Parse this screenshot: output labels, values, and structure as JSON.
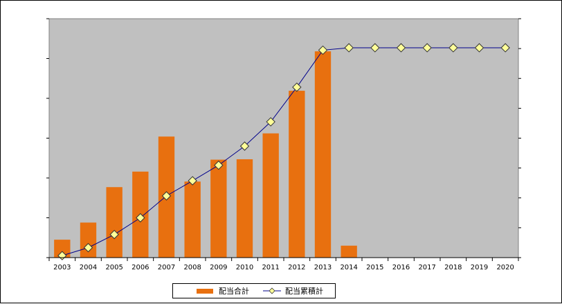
{
  "chart_data": {
    "type": "bar",
    "categories": [
      "2003",
      "2004",
      "2005",
      "2006",
      "2007",
      "2008",
      "2009",
      "2010",
      "2011",
      "2012",
      "2013",
      "2014",
      "2015",
      "2016",
      "2017",
      "2018",
      "2019",
      "2020"
    ],
    "series": [
      {
        "name": "配当合計",
        "type": "bar",
        "color": "#E8700F",
        "values": [
          4.5,
          8.8,
          17.7,
          21.6,
          30.4,
          19.1,
          24.6,
          24.7,
          31.2,
          41.9,
          51.8,
          3.0,
          null,
          null,
          null,
          null,
          null,
          null
        ]
      },
      {
        "name": "配当累積計",
        "type": "line",
        "color": "#00008B",
        "marker_color": "#FFFF99",
        "values": [
          0.5,
          2.5,
          5.8,
          10.0,
          15.5,
          19.3,
          23.2,
          28.0,
          34.1,
          42.8,
          52.1,
          52.7,
          52.7,
          52.7,
          52.7,
          52.7,
          52.7,
          52.7
        ]
      }
    ],
    "ylim": [
      0,
      60
    ],
    "y_gridlines": false,
    "y_tick_labels_shown": false,
    "plot_background": "#C0C0C0",
    "legend_position": "bottom"
  }
}
